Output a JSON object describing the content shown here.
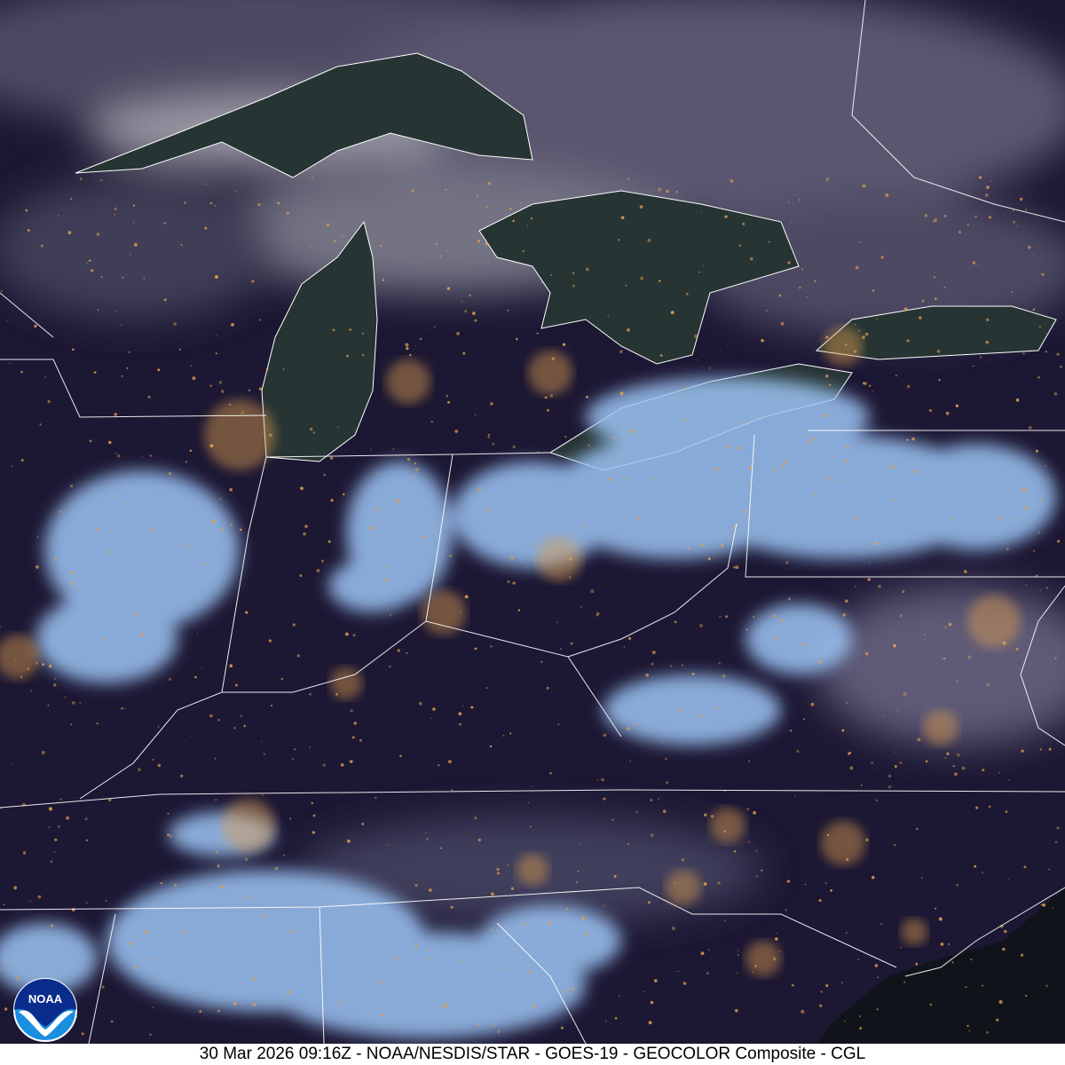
{
  "caption": "30 Mar 2026 09:16Z - NOAA/NESDIS/STAR - GOES-19 - GEOCOLOR Composite - CGL",
  "logo": {
    "text": "NOAA",
    "colors": {
      "top": "#0a2c8c",
      "bottom": "#1a8ee0"
    }
  },
  "colors": {
    "night_land": "#1c1733",
    "cloud_low": "#9cc4f4",
    "cloud_high": "#cfcfd8",
    "lake": "#2a3a3a",
    "city_lights": "#e0a050",
    "borders": "#ffffff"
  }
}
